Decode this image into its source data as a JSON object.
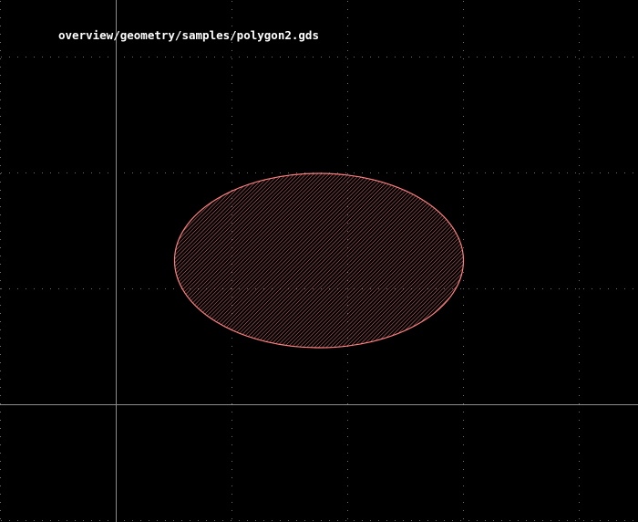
{
  "view": {
    "file_path": "overview/geometry/samples/polygon2.gds"
  },
  "colors": {
    "background": "#000000",
    "grid_dot": "#6e6e6e",
    "axis_line": "#8c8c8c",
    "shape_outline": "#ff7f7f",
    "shape_hatch": "#ff7f7f",
    "text": "#ffffff"
  },
  "layout_shape": {
    "type": "ellipse",
    "fill": "diagonal-hatch"
  },
  "icons": {
    "canvas": "layout-canvas"
  }
}
